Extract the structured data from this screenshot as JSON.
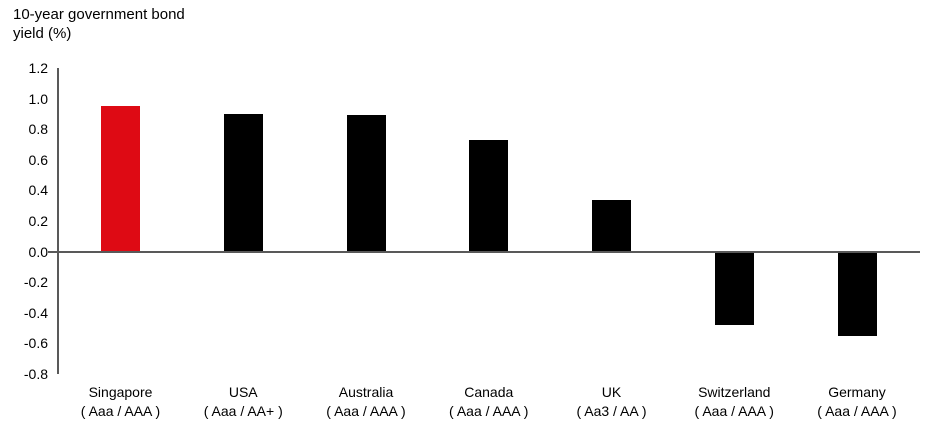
{
  "title": {
    "line1": "10-year government bond",
    "line2": "yield (%)"
  },
  "chart_data": {
    "type": "bar",
    "title": "10-year government bond yield (%)",
    "ylabel": "10-year government bond yield (%)",
    "xlabel": "",
    "categories": [
      "Singapore",
      "USA",
      "Australia",
      "Canada",
      "UK",
      "Switzerland",
      "Germany"
    ],
    "ratings": [
      "( Aaa / AAA )",
      "( Aaa / AA+ )",
      "( Aaa / AAA )",
      "( Aaa / AAA )",
      "( Aa3 / AA )",
      "( Aaa / AAA )",
      "( Aaa / AAA )"
    ],
    "values": [
      0.95,
      0.9,
      0.89,
      0.73,
      0.34,
      -0.48,
      -0.55
    ],
    "bar_colors": [
      "#de0a14",
      "#000000",
      "#000000",
      "#000000",
      "#000000",
      "#000000",
      "#000000"
    ],
    "highlight_color": "#de0a14",
    "default_bar_color": "#000000",
    "axis_color": "#595959",
    "ylim": [
      -0.8,
      1.2
    ],
    "yticks": [
      "1.2",
      "1.0",
      "0.8",
      "0.6",
      "0.4",
      "0.2",
      "0.0",
      "-0.2",
      "-0.4",
      "-0.6",
      "-0.8"
    ],
    "grid": false,
    "legend": "none"
  }
}
